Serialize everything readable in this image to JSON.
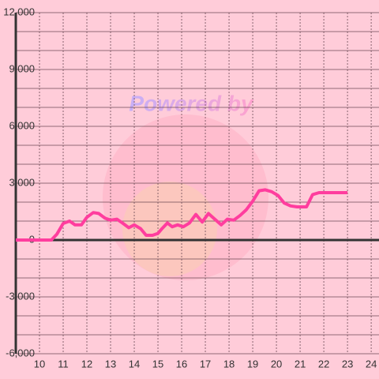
{
  "chart_data": {
    "type": "line",
    "watermark": "Powered by",
    "x": [
      9,
      10.33,
      10.5,
      10.73,
      11,
      11.27,
      11.5,
      11.77,
      12,
      12.27,
      12.5,
      12.77,
      13,
      13.27,
      13.5,
      13.77,
      14,
      14.27,
      14.5,
      14.77,
      15,
      15.17,
      15.4,
      15.6,
      15.83,
      16.07,
      16.33,
      16.6,
      16.87,
      17.13,
      17.4,
      17.67,
      17.93,
      18.2,
      18.47,
      18.73,
      19,
      19.27,
      19.53,
      19.8,
      20.07,
      20.33,
      20.6,
      20.87,
      21.27,
      21.53,
      21.8,
      22.07,
      23
    ],
    "series": [
      {
        "color": "#ff3d9e",
        "values": [
          0,
          0,
          0,
          300,
          875,
          1000,
          800,
          800,
          1200,
          1450,
          1400,
          1150,
          1050,
          1100,
          900,
          650,
          800,
          600,
          250,
          250,
          350,
          600,
          900,
          700,
          800,
          700,
          900,
          1350,
          950,
          1400,
          1100,
          800,
          1100,
          1050,
          1300,
          1600,
          2050,
          2600,
          2650,
          2550,
          2350,
          1950,
          1800,
          1750,
          1750,
          2400,
          2500,
          2500,
          2500
        ]
      }
    ],
    "xlim": [
      9,
      24.33
    ],
    "xticks": [
      10,
      11,
      12,
      13,
      14,
      15,
      16,
      17,
      18,
      19,
      20,
      21,
      22,
      23,
      24
    ],
    "ylim": [
      -6000,
      12000
    ],
    "yticks": [
      {
        "value": -6000,
        "label": "-6,000"
      },
      {
        "value": -3000,
        "label": "-3,000"
      },
      0,
      {
        "value": 3000,
        "label": "3,000"
      },
      {
        "value": 6000,
        "label": "6,000"
      },
      {
        "value": 9000,
        "label": "9,000"
      },
      {
        "value": 12000,
        "label": "12,000"
      }
    ],
    "y_minor_ticks": [
      -5000,
      -4000,
      -2000,
      -1000,
      1000,
      2000,
      4000,
      5000,
      7000,
      8000,
      10000,
      11000
    ],
    "grid": true
  }
}
